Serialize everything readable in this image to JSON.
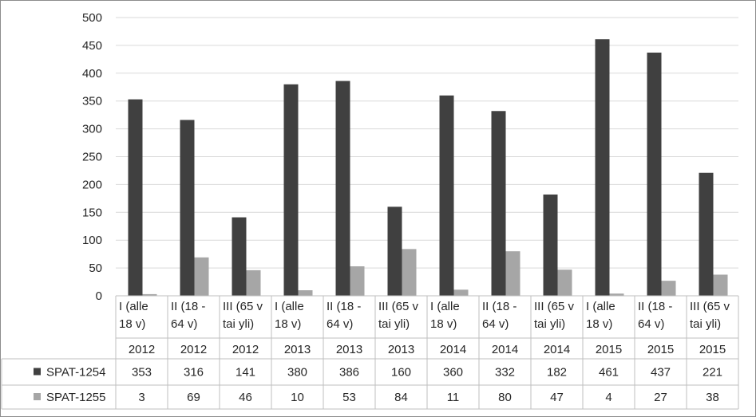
{
  "chart_data": {
    "type": "bar",
    "title": "",
    "xlabel": "",
    "ylabel": "",
    "ylim": [
      0,
      500
    ],
    "yticks": [
      0,
      50,
      100,
      150,
      200,
      250,
      300,
      350,
      400,
      450,
      500
    ],
    "grid": true,
    "legend": "data-table-left",
    "categories": [
      {
        "group_line1": "I (alle",
        "group_line2": "18 v)",
        "year": "2012"
      },
      {
        "group_line1": "II (18 -",
        "group_line2": "64 v)",
        "year": "2012"
      },
      {
        "group_line1": "III (65 v",
        "group_line2": "tai yli)",
        "year": "2012"
      },
      {
        "group_line1": "I (alle",
        "group_line2": "18 v)",
        "year": "2013"
      },
      {
        "group_line1": "II (18 -",
        "group_line2": "64 v)",
        "year": "2013"
      },
      {
        "group_line1": "III (65 v",
        "group_line2": "tai yli)",
        "year": "2013"
      },
      {
        "group_line1": "I (alle",
        "group_line2": "18 v)",
        "year": "2014"
      },
      {
        "group_line1": "II (18 -",
        "group_line2": "64 v)",
        "year": "2014"
      },
      {
        "group_line1": "III (65 v",
        "group_line2": "tai yli)",
        "year": "2014"
      },
      {
        "group_line1": "I (alle",
        "group_line2": "18 v)",
        "year": "2015"
      },
      {
        "group_line1": "II (18 -",
        "group_line2": "64 v)",
        "year": "2015"
      },
      {
        "group_line1": "III (65 v",
        "group_line2": "tai yli)",
        "year": "2015"
      }
    ],
    "series": [
      {
        "name": "SPAT-1254",
        "color": "#404040",
        "values": [
          353,
          316,
          141,
          380,
          386,
          160,
          360,
          332,
          182,
          461,
          437,
          221
        ]
      },
      {
        "name": "SPAT-1255",
        "color": "#a6a6a6",
        "values": [
          3,
          69,
          46,
          10,
          53,
          84,
          11,
          80,
          47,
          4,
          27,
          38
        ]
      }
    ],
    "colors": {
      "grid": "#d9d9d9",
      "axis": "#bfbfbf",
      "table_border": "#bfbfbf",
      "text": "#262626"
    }
  }
}
